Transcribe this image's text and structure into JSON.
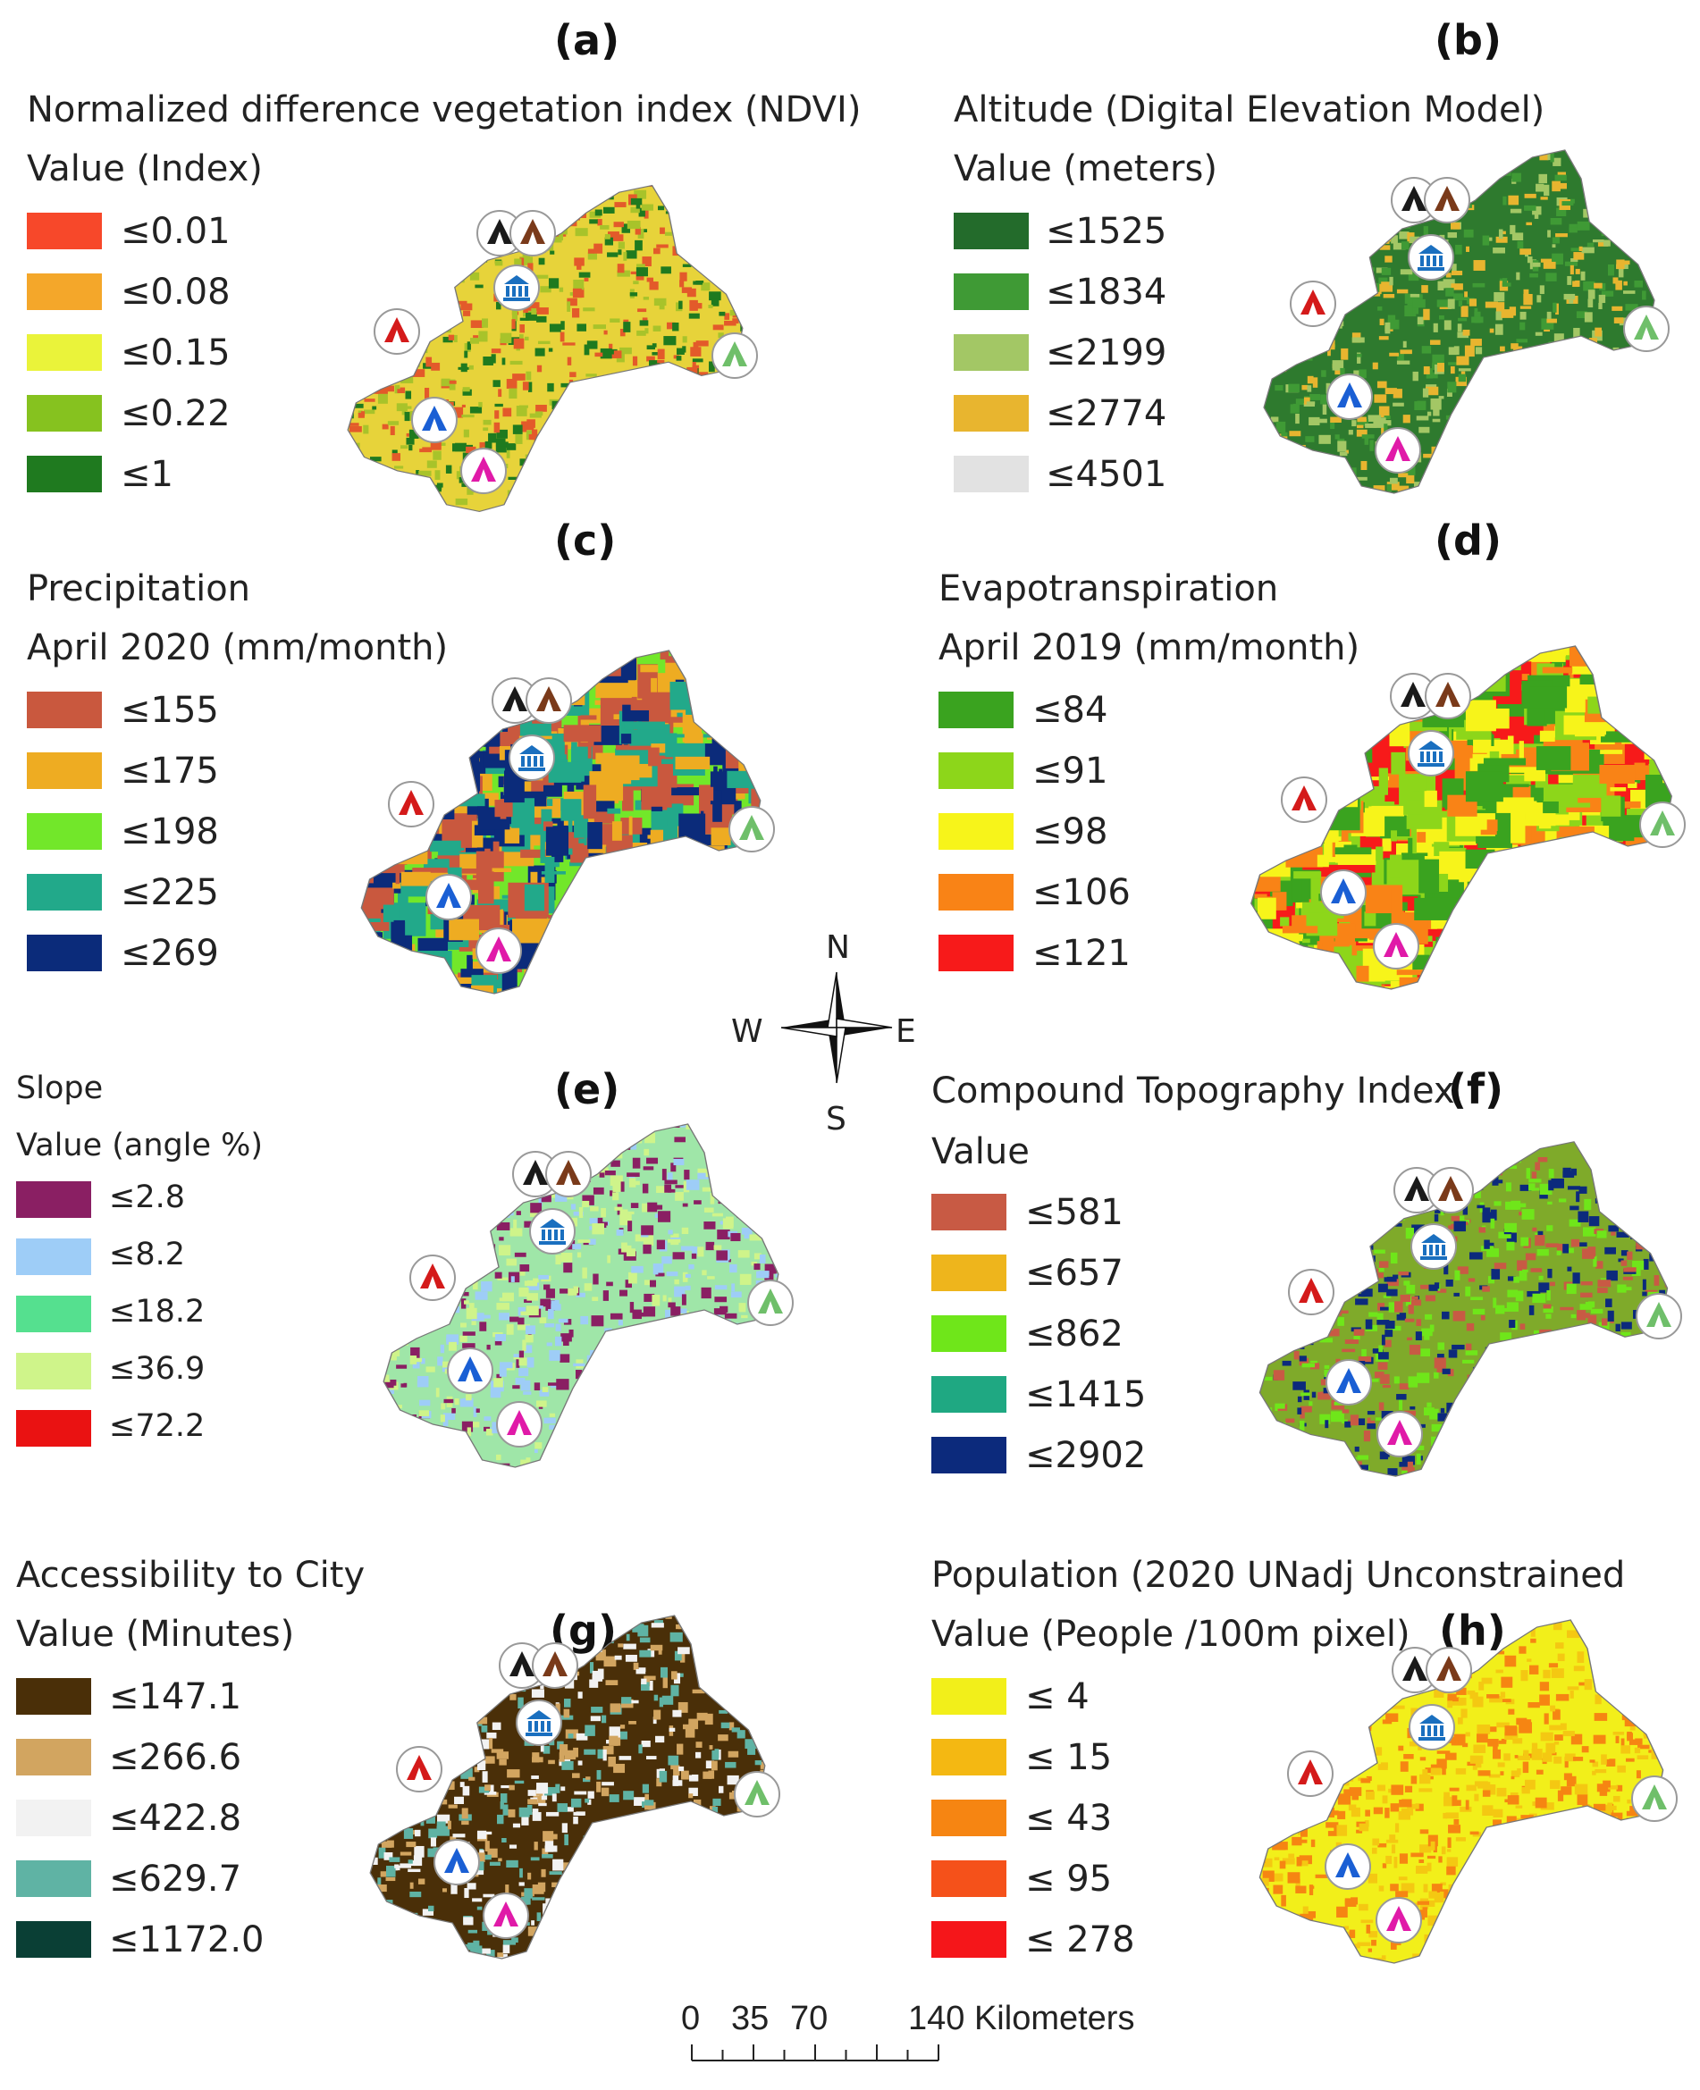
{
  "panels": [
    {
      "label": "(a)",
      "title": "Normalized difference vegetation index (NDVI)",
      "subtitle": "Value (Index)",
      "legend": [
        {
          "label": "≤0.01",
          "color": "#f7482a"
        },
        {
          "label": "≤0.08",
          "color": "#f4a72a"
        },
        {
          "label": "≤0.15",
          "color": "#eaf33a"
        },
        {
          "label": "≤0.22",
          "color": "#86c21f"
        },
        {
          "label": "≤1",
          "color": "#1f7a1f"
        }
      ],
      "map_colors": [
        "#e7d33a",
        "#e35a2a",
        "#a8c32a",
        "#1f7a1f"
      ]
    },
    {
      "label": "(b)",
      "title": "Altitude (Digital Elevation Model)",
      "subtitle": "Value (meters)",
      "legend": [
        {
          "label": "≤1525",
          "color": "#236b2b"
        },
        {
          "label": "≤1834",
          "color": "#3f9a35"
        },
        {
          "label": "≤2199",
          "color": "#a3c765"
        },
        {
          "label": "≤2774",
          "color": "#e8b52f"
        },
        {
          "label": "≤4501",
          "color": "#e2e2e2"
        }
      ],
      "map_colors": [
        "#2e7a2e",
        "#3f9a35",
        "#a3c765",
        "#e8b52f"
      ]
    },
    {
      "label": "(c)",
      "title": "Precipitation",
      "subtitle": "April 2020 (mm/month)",
      "legend": [
        {
          "label": "≤155",
          "color": "#c9583e"
        },
        {
          "label": "≤175",
          "color": "#eeac22"
        },
        {
          "label": "≤198",
          "color": "#72e72a"
        },
        {
          "label": "≤225",
          "color": "#22a98a"
        },
        {
          "label": "≤269",
          "color": "#0b2b7a"
        }
      ],
      "map_colors": [
        "#72e72a",
        "#eeac22",
        "#c9583e",
        "#22a98a",
        "#0b2b7a"
      ]
    },
    {
      "label": "(d)",
      "title": "Evapotranspiration",
      "subtitle": "April 2019 (mm/month)",
      "legend": [
        {
          "label": "≤84",
          "color": "#3aa31f"
        },
        {
          "label": "≤91",
          "color": "#8dd61a"
        },
        {
          "label": "≤98",
          "color": "#f7f41a"
        },
        {
          "label": "≤106",
          "color": "#f98316"
        },
        {
          "label": "≤121",
          "color": "#f71a1a"
        }
      ],
      "map_colors": [
        "#f71a1a",
        "#8dd61a",
        "#f7f41a",
        "#f98316",
        "#3aa31f"
      ]
    },
    {
      "label": "(e)",
      "title": "Slope",
      "subtitle": "Value (angle %)",
      "legend": [
        {
          "label": "≤2.8",
          "color": "#8a1f63"
        },
        {
          "label": "≤8.2",
          "color": "#9ecdf7"
        },
        {
          "label": "≤18.2",
          "color": "#55e08f"
        },
        {
          "label": "≤36.9",
          "color": "#cff48a"
        },
        {
          "label": "≤72.2",
          "color": "#ea1212"
        }
      ],
      "map_colors": [
        "#9fe6a8",
        "#9ecdf7",
        "#8a1f63",
        "#cff48a"
      ]
    },
    {
      "label": "(f)",
      "title": "Compound Topography Index",
      "subtitle": "Value",
      "legend": [
        {
          "label": "≤581",
          "color": "#c85a44"
        },
        {
          "label": "≤657",
          "color": "#eeb51c"
        },
        {
          "label": "≤862",
          "color": "#6fe61a"
        },
        {
          "label": "≤1415",
          "color": "#1fa882"
        },
        {
          "label": "≤2902",
          "color": "#0c2a7c"
        }
      ],
      "map_colors": [
        "#7faa2a",
        "#c85a44",
        "#6fe61a",
        "#0c2a7c"
      ]
    },
    {
      "label": "(g)",
      "title": "Accessibility to City",
      "subtitle": "Value (Minutes)",
      "legend": [
        {
          "label": "≤147.1",
          "color": "#4a2f08"
        },
        {
          "label": "≤266.6",
          "color": "#d2a560"
        },
        {
          "label": "≤422.8",
          "color": "#f2f2f2"
        },
        {
          "label": "≤629.7",
          "color": "#5fb3a4"
        },
        {
          "label": "≤1172.0",
          "color": "#0a3f35"
        }
      ],
      "map_colors": [
        "#4a2f08",
        "#d2a560",
        "#f2f2f2",
        "#5fb3a4"
      ]
    },
    {
      "label": "(h)",
      "title": "Population (2020 UNadj Unconstrained",
      "subtitle": "Value (People /100m pixel)",
      "legend": [
        {
          "label": "≤ 4",
          "color": "#f2ef1a"
        },
        {
          "label": "≤ 15",
          "color": "#f4b812"
        },
        {
          "label": "≤ 43",
          "color": "#f68512"
        },
        {
          "label": "≤ 95",
          "color": "#f5511a"
        },
        {
          "label": "≤ 278",
          "color": "#f5161a"
        }
      ],
      "map_colors": [
        "#f2ef1a",
        "#f4c812",
        "#f68512"
      ]
    }
  ],
  "compass": {
    "n": "N",
    "s": "S",
    "e": "E",
    "w": "W"
  },
  "scale_bar": {
    "ticks": [
      "0",
      "35",
      "70",
      "140 Kilometers"
    ]
  },
  "markers": [
    {
      "name": "black-tent-marker",
      "color": "#1a1a1a",
      "type": "tent"
    },
    {
      "name": "brown-tent-marker",
      "color": "#7a3a1a",
      "type": "tent"
    },
    {
      "name": "museum-marker",
      "color": "#1a6fbf",
      "type": "museum"
    },
    {
      "name": "red-tent-marker",
      "color": "#d41a1a",
      "type": "tent"
    },
    {
      "name": "green-tent-marker",
      "color": "#6fbf6a",
      "type": "tent"
    },
    {
      "name": "blue-tent-marker",
      "color": "#1a5fd4",
      "type": "tent"
    },
    {
      "name": "pink-tent-marker",
      "color": "#e01aa8",
      "type": "tent"
    }
  ]
}
